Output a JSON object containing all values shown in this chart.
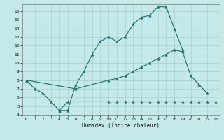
{
  "xlabel": "Humidex (Indice chaleur)",
  "background_color": "#c5e8e8",
  "grid_color": "#a8d0d0",
  "line_color": "#1a6b6b",
  "ylim": [
    4,
    16.8
  ],
  "xlim": [
    -0.5,
    23.5
  ],
  "yticks": [
    4,
    5,
    6,
    7,
    8,
    9,
    10,
    11,
    12,
    13,
    14,
    15,
    16
  ],
  "xticks": [
    0,
    1,
    2,
    3,
    4,
    5,
    6,
    7,
    8,
    9,
    10,
    11,
    12,
    13,
    14,
    15,
    16,
    17,
    18,
    19,
    20,
    21,
    22,
    23
  ],
  "line1_x": [
    0,
    1,
    2,
    3,
    4,
    5,
    6,
    7,
    8,
    9,
    10,
    11,
    12,
    13,
    14,
    15,
    16,
    17,
    18,
    19
  ],
  "line1_y": [
    8.0,
    7.0,
    6.5,
    5.5,
    4.5,
    4.5,
    7.5,
    9.0,
    11.0,
    12.5,
    13.0,
    12.5,
    13.0,
    14.5,
    15.3,
    15.5,
    16.5,
    16.5,
    14.0,
    11.5
  ],
  "line2_x": [
    0,
    6,
    10,
    11,
    12,
    13,
    14,
    15,
    16,
    17,
    18,
    19,
    20,
    21,
    22
  ],
  "line2_y": [
    8.0,
    7.0,
    8.0,
    8.2,
    8.5,
    9.0,
    9.5,
    10.0,
    10.5,
    11.0,
    11.5,
    11.3,
    8.5,
    7.5,
    6.5
  ],
  "line3_x": [
    4,
    5,
    10,
    11,
    12,
    13,
    14,
    15,
    16,
    17,
    18,
    19,
    20,
    21,
    22,
    23
  ],
  "line3_y": [
    4.5,
    5.5,
    5.5,
    5.5,
    5.5,
    5.5,
    5.5,
    5.5,
    5.5,
    5.5,
    5.5,
    5.5,
    5.5,
    5.5,
    5.5,
    5.5
  ]
}
